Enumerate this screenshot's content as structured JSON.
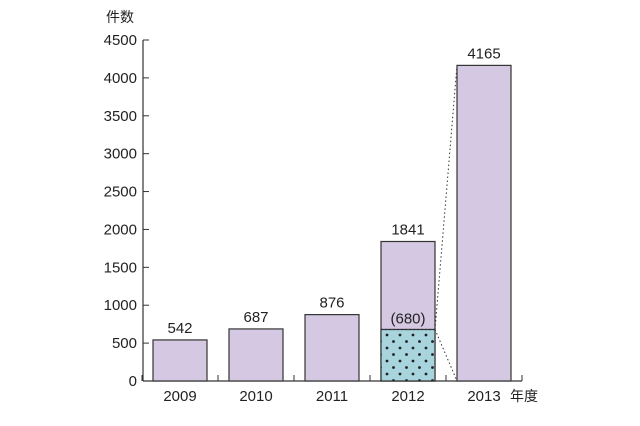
{
  "chart_data": {
    "type": "bar",
    "ylabel": "件数",
    "xlabel": "年度",
    "ylim": [
      0,
      4500
    ],
    "yticks": [
      0,
      500,
      1000,
      1500,
      2000,
      2500,
      3000,
      3500,
      4000,
      4500
    ],
    "categories": [
      "2009",
      "2010",
      "2011",
      "2012",
      "2013"
    ],
    "values": [
      542,
      687,
      876,
      1841,
      4165
    ],
    "data_labels": [
      "542",
      "687",
      "876",
      "1841",
      "4165"
    ],
    "sub_segment": {
      "category": "2012",
      "value": 680,
      "label": "(680)",
      "pattern": "dotted"
    },
    "grid": false,
    "legend": "none"
  },
  "colors": {
    "bar_fill": "#d5c8e3",
    "bar_stroke": "#333333",
    "sub_segment_fill": "#a8d4dd",
    "dot_color": "#222222",
    "axis": "#333333"
  }
}
